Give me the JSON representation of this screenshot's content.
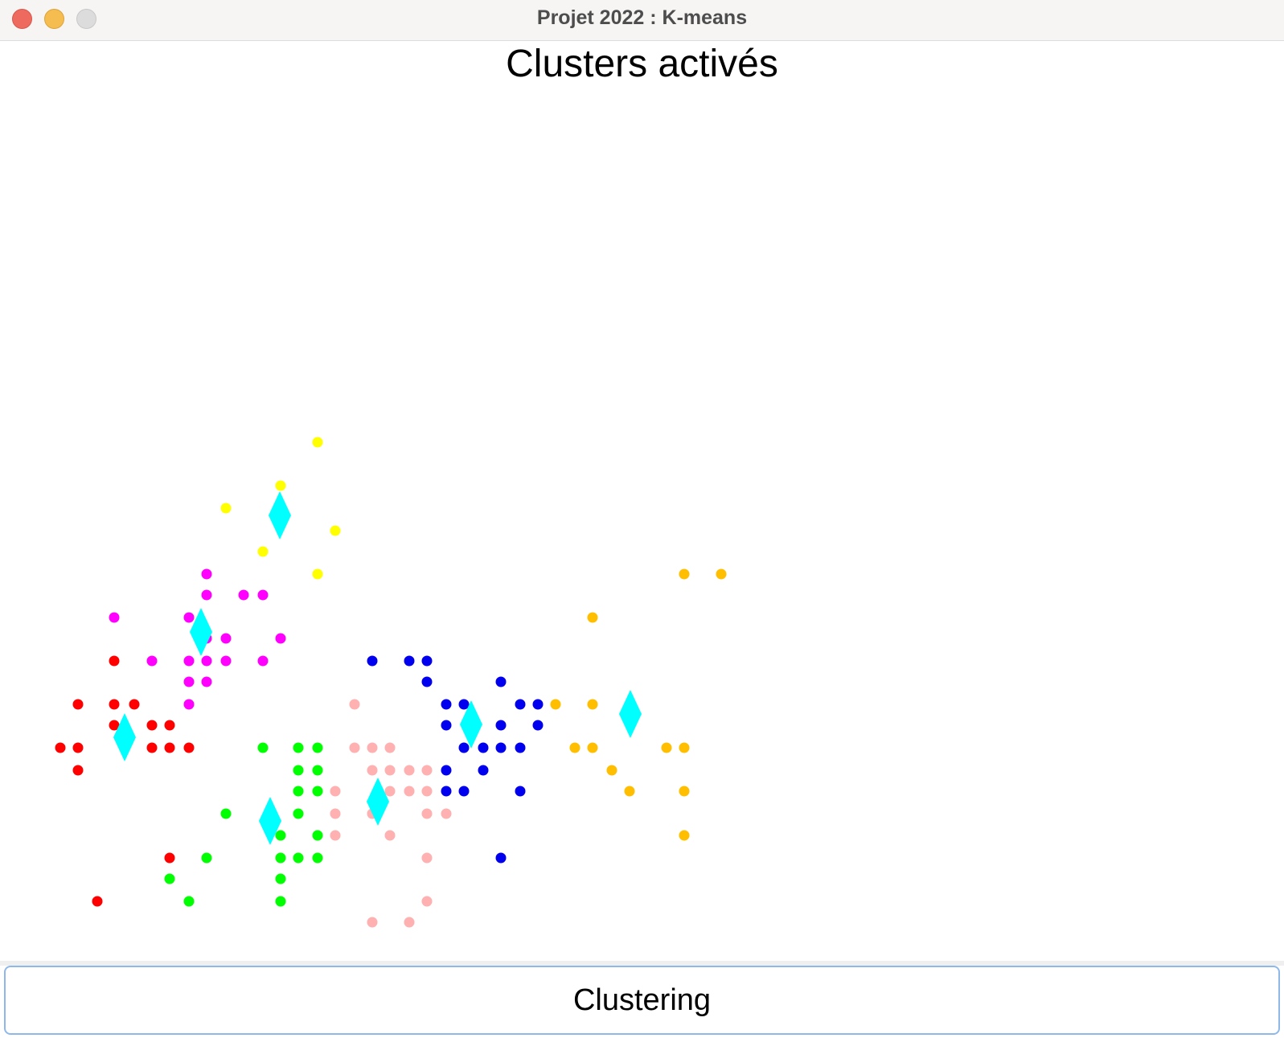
{
  "window": {
    "title": "Projet 2022 : K-means"
  },
  "panel": {
    "title": "Clusters activés"
  },
  "actions": {
    "clustering_label": "Clustering"
  },
  "clusters": [
    {
      "name": "red",
      "color": "#ff0000",
      "centroid": [
        155,
        917
      ],
      "points": [
        [
          142,
          822
        ],
        [
          97,
          876
        ],
        [
          142,
          876
        ],
        [
          167,
          876
        ],
        [
          142,
          902
        ],
        [
          189,
          902
        ],
        [
          211,
          902
        ],
        [
          75,
          930
        ],
        [
          97,
          930
        ],
        [
          189,
          930
        ],
        [
          211,
          930
        ],
        [
          235,
          930
        ],
        [
          97,
          958
        ],
        [
          211,
          1067
        ],
        [
          121,
          1121
        ]
      ]
    },
    {
      "name": "magenta",
      "color": "#ff00ff",
      "centroid": [
        250,
        786
      ],
      "points": [
        [
          257,
          714
        ],
        [
          257,
          740
        ],
        [
          303,
          740
        ],
        [
          327,
          740
        ],
        [
          142,
          768
        ],
        [
          235,
          768
        ],
        [
          257,
          794
        ],
        [
          281,
          794
        ],
        [
          349,
          794
        ],
        [
          189,
          822
        ],
        [
          235,
          822
        ],
        [
          257,
          822
        ],
        [
          281,
          822
        ],
        [
          327,
          822
        ],
        [
          235,
          848
        ],
        [
          257,
          848
        ],
        [
          235,
          876
        ]
      ]
    },
    {
      "name": "yellow",
      "color": "#ffff00",
      "centroid": [
        348,
        641
      ],
      "points": [
        [
          395,
          550
        ],
        [
          349,
          604
        ],
        [
          281,
          632
        ],
        [
          417,
          660
        ],
        [
          327,
          686
        ],
        [
          395,
          714
        ]
      ]
    },
    {
      "name": "green",
      "color": "#00ff00",
      "centroid": [
        336,
        1021
      ],
      "points": [
        [
          327,
          930
        ],
        [
          371,
          930
        ],
        [
          395,
          930
        ],
        [
          371,
          958
        ],
        [
          395,
          958
        ],
        [
          371,
          984
        ],
        [
          395,
          984
        ],
        [
          281,
          1012
        ],
        [
          371,
          1012
        ],
        [
          349,
          1039
        ],
        [
          395,
          1039
        ],
        [
          257,
          1067
        ],
        [
          349,
          1067
        ],
        [
          371,
          1067
        ],
        [
          395,
          1067
        ],
        [
          211,
          1093
        ],
        [
          349,
          1093
        ],
        [
          235,
          1121
        ],
        [
          349,
          1121
        ]
      ]
    },
    {
      "name": "pink",
      "color": "#ffb0b0",
      "centroid": [
        470,
        997
      ],
      "points": [
        [
          441,
          876
        ],
        [
          441,
          930
        ],
        [
          463,
          930
        ],
        [
          485,
          930
        ],
        [
          463,
          958
        ],
        [
          485,
          958
        ],
        [
          509,
          958
        ],
        [
          531,
          958
        ],
        [
          417,
          984
        ],
        [
          485,
          984
        ],
        [
          509,
          984
        ],
        [
          531,
          984
        ],
        [
          417,
          1012
        ],
        [
          463,
          1012
        ],
        [
          531,
          1012
        ],
        [
          555,
          1012
        ],
        [
          417,
          1039
        ],
        [
          485,
          1039
        ],
        [
          531,
          1067
        ],
        [
          531,
          1121
        ],
        [
          463,
          1147
        ],
        [
          509,
          1147
        ]
      ]
    },
    {
      "name": "blue",
      "color": "#0000ee",
      "centroid": [
        586,
        901
      ],
      "points": [
        [
          463,
          822
        ],
        [
          509,
          822
        ],
        [
          531,
          822
        ],
        [
          531,
          848
        ],
        [
          623,
          848
        ],
        [
          555,
          876
        ],
        [
          577,
          876
        ],
        [
          647,
          876
        ],
        [
          669,
          876
        ],
        [
          555,
          902
        ],
        [
          623,
          902
        ],
        [
          669,
          902
        ],
        [
          577,
          930
        ],
        [
          601,
          930
        ],
        [
          623,
          930
        ],
        [
          647,
          930
        ],
        [
          555,
          958
        ],
        [
          601,
          958
        ],
        [
          555,
          984
        ],
        [
          577,
          984
        ],
        [
          647,
          984
        ],
        [
          623,
          1067
        ]
      ]
    },
    {
      "name": "orange",
      "color": "#ffbf00",
      "centroid": [
        784,
        888
      ],
      "points": [
        [
          851,
          714
        ],
        [
          897,
          714
        ],
        [
          737,
          768
        ],
        [
          691,
          876
        ],
        [
          737,
          876
        ],
        [
          715,
          930
        ],
        [
          737,
          930
        ],
        [
          829,
          930
        ],
        [
          851,
          930
        ],
        [
          761,
          958
        ],
        [
          783,
          984
        ],
        [
          851,
          984
        ],
        [
          851,
          1039
        ]
      ]
    }
  ],
  "centroid_color": "#00ffff"
}
